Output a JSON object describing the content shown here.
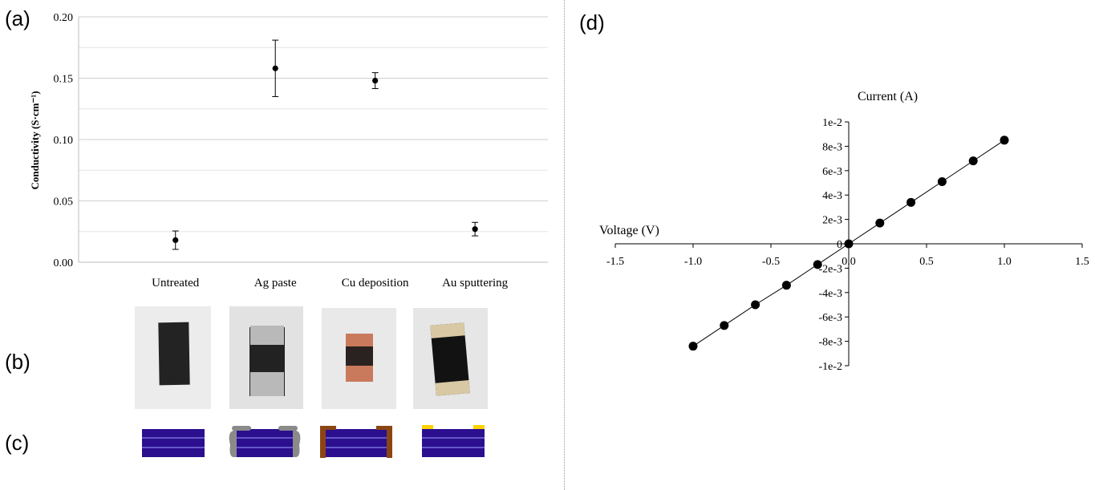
{
  "panels": {
    "a": "(a)",
    "b": "(b)",
    "c": "(c)",
    "d": "(d)"
  },
  "chart_data": [
    {
      "type": "scatter",
      "panel": "(a)",
      "categories": [
        "Untreated",
        "Ag paste",
        "Cu deposition",
        "Au sputtering"
      ],
      "values": [
        0.018,
        0.158,
        0.148,
        0.027
      ],
      "error": [
        0.0075,
        0.023,
        0.0065,
        0.0055
      ],
      "ylabel": "Conductivity (S·cm⁻¹)",
      "ylim": [
        0,
        0.2
      ],
      "yticks": [
        "0.00",
        "0.05",
        "0.10",
        "0.15",
        "0.20"
      ],
      "grid": true,
      "marker_color": "#000000"
    },
    {
      "type": "line",
      "panel": "(d)",
      "xlabel": "Voltage (V)",
      "ylabel": "Current (A)",
      "xlim": [
        -1.5,
        1.5
      ],
      "ylim": [
        -0.01,
        0.01
      ],
      "xticks": [
        "-1.5",
        "-1.0",
        "-0.5",
        "0.0",
        "0.5",
        "1.0",
        "1.5"
      ],
      "yticks": [
        "-1e-2",
        "-8e-3",
        "-6e-3",
        "-4e-3",
        "-2e-3",
        "0",
        "2e-3",
        "4e-3",
        "6e-3",
        "8e-3",
        "1e-2"
      ],
      "x": [
        -1.0,
        -0.8,
        -0.6,
        -0.4,
        -0.2,
        0.0,
        0.2,
        0.4,
        0.6,
        0.8,
        1.0
      ],
      "y": [
        -0.0084,
        -0.0067,
        -0.005,
        -0.0034,
        -0.0017,
        0.0,
        0.0017,
        0.0034,
        0.0051,
        0.0068,
        0.0085
      ],
      "marker_color": "#000000"
    }
  ],
  "photos": [
    {
      "sample": "Untreated",
      "bg": "#ececec",
      "body": "#232323",
      "electrode": "none"
    },
    {
      "sample": "Ag paste",
      "bg": "#e2e2e2",
      "body": "#222222",
      "electrode": "#b9b9b9"
    },
    {
      "sample": "Cu deposition",
      "bg": "#e9e9e9",
      "body": "#2a2220",
      "electrode": "#c97a5c"
    },
    {
      "sample": "Au sputtering",
      "bg": "#e6e6e6",
      "body": "#121212",
      "electrode": "#d8c9a4"
    }
  ],
  "schematics": [
    {
      "sample": "Untreated",
      "layer": "#2b0f8f",
      "contact": "none"
    },
    {
      "sample": "Ag paste",
      "layer": "#2b0f8f",
      "contact": "#8a8a8a"
    },
    {
      "sample": "Cu deposition",
      "layer": "#2b0f8f",
      "contact": "#8b4513"
    },
    {
      "sample": "Au sputtering",
      "layer": "#2b0f8f",
      "contact": "#ffd200"
    }
  ]
}
